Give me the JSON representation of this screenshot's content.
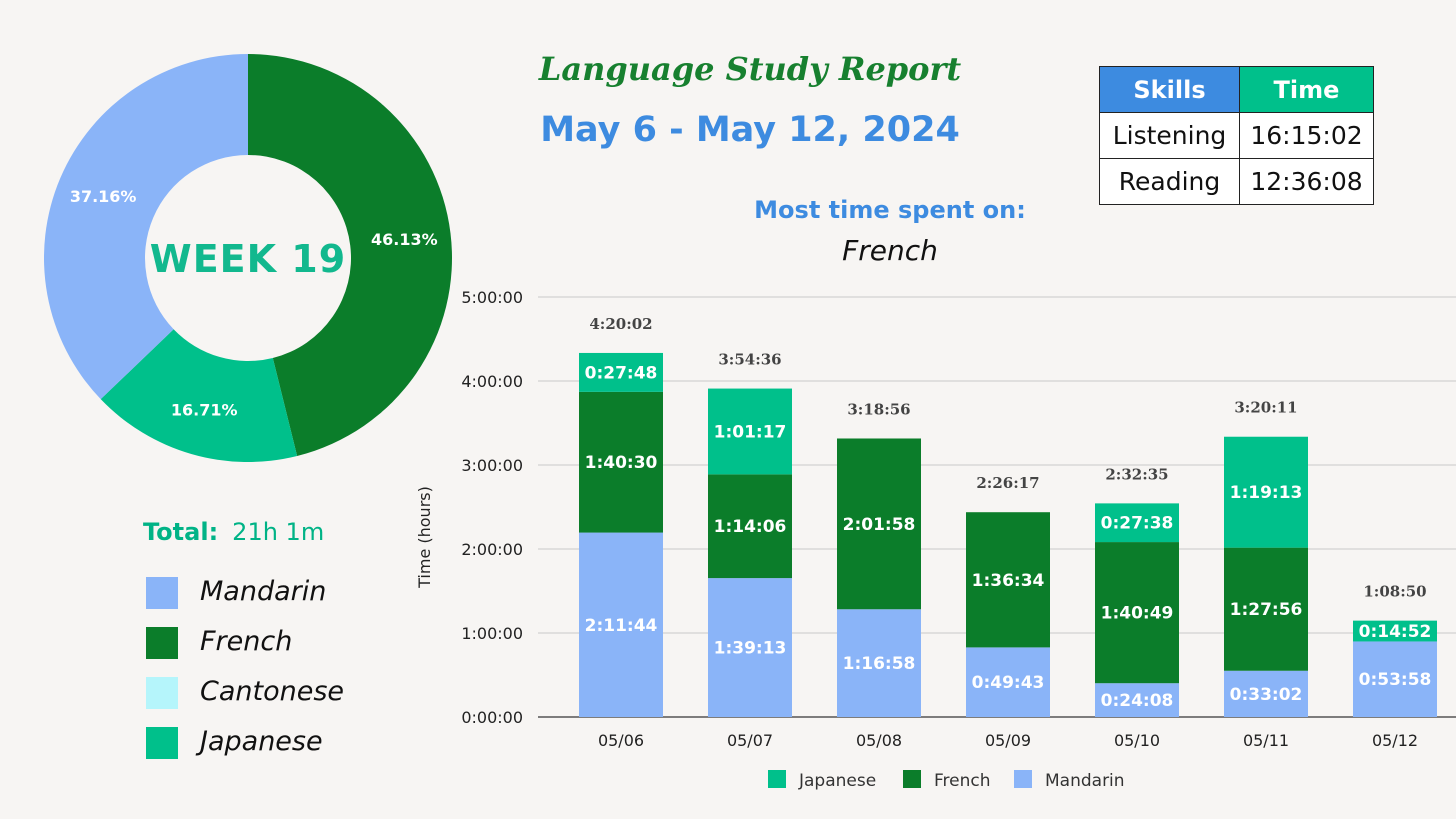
{
  "header": {
    "title": "Language Study Report",
    "date_range": "May 6 - May 12, 2024",
    "most_time_label": "Most time spent on:",
    "most_time_value": "French"
  },
  "skills_table": {
    "headers": [
      "Skills",
      "Time"
    ],
    "rows": [
      {
        "skill": "Listening",
        "time": "16:15:02"
      },
      {
        "skill": "Reading",
        "time": "12:36:08"
      }
    ]
  },
  "summary": {
    "total_label": "Total:",
    "total_value": "21h 1m"
  },
  "legend_left": [
    {
      "label": "Mandarin",
      "color": "#8ab4f8"
    },
    {
      "label": "French",
      "color": "#0b7d2a"
    },
    {
      "label": "Cantonese",
      "color": "#b5f5fb"
    },
    {
      "label": "Japanese",
      "color": "#00c08b"
    }
  ],
  "colors": {
    "mandarin": "#8ab4f8",
    "french": "#0b7d2a",
    "japanese": "#00c08b",
    "blue_accent": "#3d8be0",
    "green_title": "#17802f"
  },
  "chart_data": [
    {
      "type": "pie",
      "donut": true,
      "center_label": "WEEK 19",
      "slices": [
        {
          "name": "French",
          "value": 46.13,
          "label": "46.13%",
          "color": "#0b7d2a"
        },
        {
          "name": "Japanese",
          "value": 16.71,
          "label": "16.71%",
          "color": "#00c08b"
        },
        {
          "name": "Mandarin",
          "value": 37.16,
          "label": "37.16%",
          "color": "#8ab4f8"
        }
      ]
    },
    {
      "type": "bar",
      "stacked": true,
      "ylabel": "Time (hours)",
      "ylim": [
        0,
        5
      ],
      "yticks": [
        "0:00:00",
        "1:00:00",
        "2:00:00",
        "3:00:00",
        "4:00:00",
        "5:00:00"
      ],
      "grid": true,
      "legend_position": "bottom",
      "categories": [
        "05/06",
        "05/07",
        "05/08",
        "05/09",
        "05/10",
        "05/11",
        "05/12"
      ],
      "totals": [
        "4:20:02",
        "3:54:36",
        "3:18:56",
        "2:26:17",
        "2:32:35",
        "3:20:11",
        "1:08:50"
      ],
      "series": [
        {
          "name": "Mandarin",
          "color": "#8ab4f8",
          "values": [
            2.1956,
            1.6536,
            1.2828,
            0.8286,
            0.4022,
            0.5506,
            0.8994
          ],
          "labels": [
            "2:11:44",
            "1:39:13",
            "1:16:58",
            "0:49:43",
            "0:24:08",
            "0:33:02",
            "0:53:58"
          ]
        },
        {
          "name": "French",
          "color": "#0b7d2a",
          "values": [
            1.675,
            1.235,
            2.0328,
            1.6094,
            1.6803,
            1.4656,
            0
          ],
          "labels": [
            "1:40:30",
            "1:14:06",
            "2:01:58",
            "1:36:34",
            "1:40:49",
            "1:27:56",
            ""
          ]
        },
        {
          "name": "Japanese",
          "color": "#00c08b",
          "values": [
            0.4633,
            1.0214,
            0,
            0,
            0.4606,
            1.3203,
            0.2478
          ],
          "labels": [
            "0:27:48",
            "1:01:17",
            "",
            "",
            "0:27:38",
            "1:19:13",
            "0:14:52"
          ]
        }
      ],
      "legend": [
        "Japanese",
        "French",
        "Mandarin"
      ]
    }
  ]
}
